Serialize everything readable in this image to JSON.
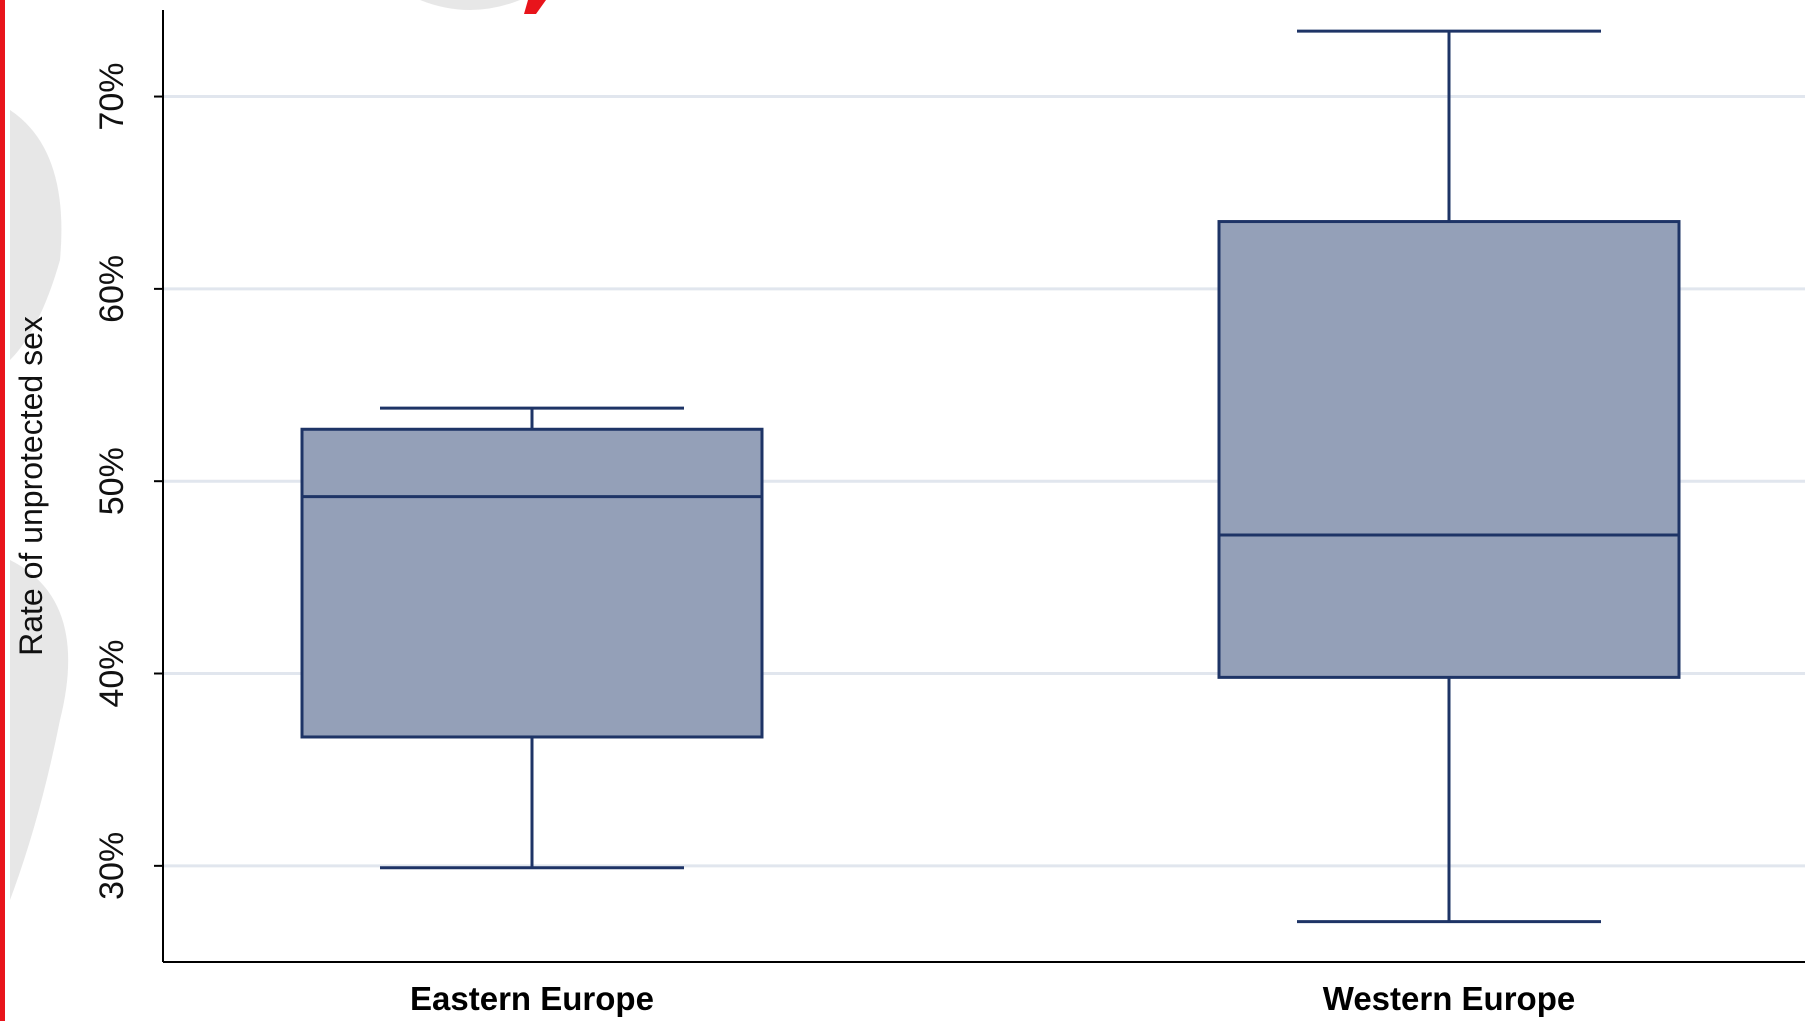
{
  "chart_data": {
    "type": "box",
    "ylabel": "Rate of unprotected sex",
    "xlabel": "",
    "ylim": [
      25,
      74.5
    ],
    "yticks": [
      30,
      40,
      50,
      60,
      70
    ],
    "ytick_labels": [
      "30%",
      "40%",
      "50%",
      "60%",
      "70%"
    ],
    "grid": "horizontal",
    "categories": [
      "Eastern Europe",
      "Western Europe"
    ],
    "boxes": [
      {
        "category": "Eastern Europe",
        "whisker_low": 29.9,
        "q1": 36.7,
        "median": 49.2,
        "q3": 52.7,
        "whisker_high": 53.8
      },
      {
        "category": "Western Europe",
        "whisker_low": 27.1,
        "q1": 39.8,
        "median": 47.2,
        "q3": 63.5,
        "whisker_high": 73.4
      }
    ],
    "colors": {
      "box_fill": "#94a0b8",
      "box_stroke": "#1e3466",
      "grid": "#e1e6ee",
      "axis": "#000000",
      "frame_accent": "#e8141b"
    }
  }
}
